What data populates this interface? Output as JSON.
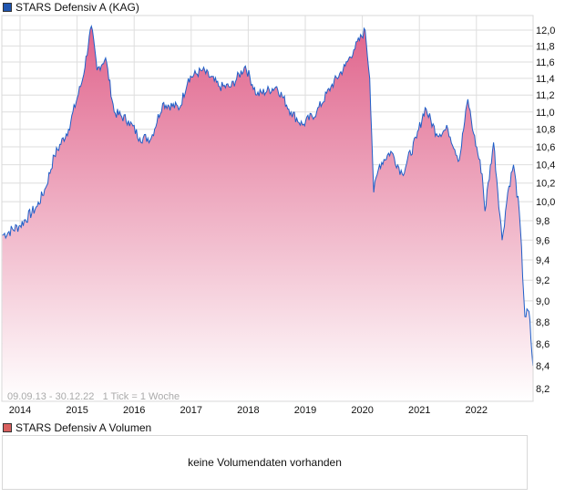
{
  "legend": {
    "title": "STARS Defensiv A (KAG)",
    "color": "#1f55b0"
  },
  "volume": {
    "title": "STARS Defensiv A Volumen",
    "color": "#d9605f",
    "empty_text": "keine Volumendaten vorhanden"
  },
  "range_label": "09.09.13 - 30.12.22   1 Tick = 1 Woche",
  "chart_data": {
    "type": "area",
    "title": "STARS Defensiv A (KAG)",
    "xlabel": "",
    "ylabel": "",
    "scale": "log",
    "ylim": [
      8.2,
      12.2
    ],
    "xlim": [
      2013.69,
      2023.0
    ],
    "y_ticks": [
      "12,0",
      "11,8",
      "11,6",
      "11,4",
      "11,2",
      "11,0",
      "10,8",
      "10,6",
      "10,4",
      "10,2",
      "10,0",
      "9,8",
      "9,6",
      "9,4",
      "9,2",
      "9,0",
      "8,8",
      "8,6",
      "8,4",
      "8,2"
    ],
    "y_tick_values": [
      12.0,
      11.8,
      11.6,
      11.4,
      11.2,
      11.0,
      10.8,
      10.6,
      10.4,
      10.2,
      10.0,
      9.8,
      9.6,
      9.4,
      9.2,
      9.0,
      8.8,
      8.6,
      8.4,
      8.2
    ],
    "x_ticks": [
      "2014",
      "2015",
      "2016",
      "2017",
      "2018",
      "2019",
      "2020",
      "2021",
      "2022"
    ],
    "x_tick_values": [
      2014,
      2015,
      2016,
      2017,
      2018,
      2019,
      2020,
      2021,
      2022
    ],
    "grid": true,
    "line_color": "#1f5fc8",
    "fill_top": "#e0648c",
    "fill_bottom": "#ffffff",
    "series": [
      {
        "name": "STARS Defensiv A (KAG)",
        "x": [
          2013.69,
          2014.0,
          2014.3,
          2014.45,
          2014.6,
          2014.85,
          2015.1,
          2015.25,
          2015.35,
          2015.5,
          2015.65,
          2015.9,
          2016.1,
          2016.3,
          2016.5,
          2016.8,
          2016.95,
          2017.2,
          2017.5,
          2017.7,
          2017.95,
          2018.15,
          2018.5,
          2018.75,
          2018.95,
          2019.2,
          2019.45,
          2019.7,
          2019.85,
          2020.05,
          2020.13,
          2020.2,
          2020.3,
          2020.5,
          2020.7,
          2020.95,
          2021.1,
          2021.3,
          2021.5,
          2021.7,
          2021.85,
          2021.95,
          2022.1,
          2022.15,
          2022.3,
          2022.45,
          2022.55,
          2022.65,
          2022.75,
          2022.85,
          2022.92,
          2022.99
        ],
        "values": [
          9.65,
          9.75,
          9.95,
          10.15,
          10.5,
          10.8,
          11.4,
          12.05,
          11.5,
          11.65,
          11.0,
          10.9,
          10.7,
          10.7,
          11.1,
          11.05,
          11.4,
          11.5,
          11.3,
          11.3,
          11.55,
          11.2,
          11.3,
          11.0,
          10.85,
          11.0,
          11.3,
          11.55,
          11.75,
          12.0,
          11.4,
          10.1,
          10.4,
          10.55,
          10.3,
          10.7,
          11.05,
          10.75,
          10.8,
          10.45,
          11.15,
          10.75,
          10.3,
          9.9,
          10.65,
          9.6,
          10.1,
          10.4,
          9.9,
          8.85,
          8.9,
          8.4
        ]
      }
    ]
  }
}
